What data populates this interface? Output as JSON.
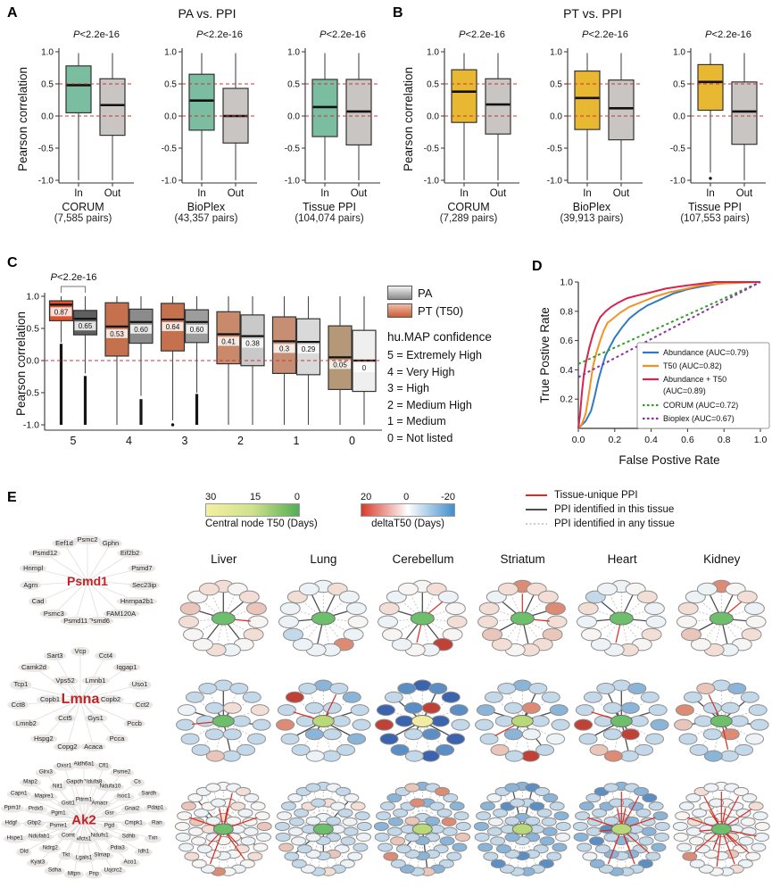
{
  "labels": {
    "A": "A",
    "B": "B",
    "C": "C",
    "D": "D",
    "E": "E"
  },
  "chart_data": [
    {
      "id": "A",
      "type": "box",
      "title": "PA vs. PPI",
      "ylabel": "Pearson correlation",
      "pvalue": "P<2.2e-16",
      "in_color": "#7abda0",
      "out_color": "#c9c5c2",
      "ref_lines": [
        0.5,
        0.0
      ],
      "ylim": [
        -1.05,
        1.05
      ],
      "yticks": [
        "1.0",
        "0.5",
        "0.0",
        "-0.5",
        "-1.0"
      ],
      "xcats": [
        "In",
        "Out"
      ],
      "subplots": [
        {
          "name": "CORUM",
          "pairs": "(7,585 pairs)",
          "in": {
            "lo": -1.0,
            "q1": 0.05,
            "med": 0.48,
            "q3": 0.78,
            "hi": 0.98
          },
          "out": {
            "lo": -1.0,
            "q1": -0.3,
            "med": 0.17,
            "q3": 0.58,
            "hi": 0.98
          }
        },
        {
          "name": "BioPlex",
          "pairs": "(43,357 pairs)",
          "in": {
            "lo": -1.0,
            "q1": -0.22,
            "med": 0.24,
            "q3": 0.65,
            "hi": 0.98
          },
          "out": {
            "lo": -1.0,
            "q1": -0.42,
            "med": 0.0,
            "q3": 0.43,
            "hi": 0.98
          }
        },
        {
          "name": "Tissue PPI",
          "pairs": "(104,074 pairs)",
          "in": {
            "lo": -1.0,
            "q1": -0.32,
            "med": 0.14,
            "q3": 0.57,
            "hi": 0.98
          },
          "out": {
            "lo": -1.0,
            "q1": -0.45,
            "med": 0.07,
            "q3": 0.57,
            "hi": 0.98
          }
        }
      ]
    },
    {
      "id": "B",
      "type": "box",
      "title": "PT vs. PPI",
      "ylabel": "Pearson correlation",
      "pvalue": "P<2.2e-16",
      "in_color": "#e8b832",
      "out_color": "#c9c5c2",
      "ref_lines": [
        0.5,
        0.0
      ],
      "ylim": [
        -1.05,
        1.05
      ],
      "yticks": [
        "1.0",
        "0.5",
        "0.0",
        "-0.5",
        "-1.0"
      ],
      "xcats": [
        "In",
        "Out"
      ],
      "subplots": [
        {
          "name": "CORUM",
          "pairs": "(7,289 pairs)",
          "in": {
            "lo": -1.0,
            "q1": -0.1,
            "med": 0.38,
            "q3": 0.72,
            "hi": 0.98
          },
          "out": {
            "lo": -1.0,
            "q1": -0.28,
            "med": 0.18,
            "q3": 0.58,
            "hi": 0.98
          }
        },
        {
          "name": "BioPlex",
          "pairs": "(39,913 pairs)",
          "in": {
            "lo": -1.0,
            "q1": -0.21,
            "med": 0.28,
            "q3": 0.7,
            "hi": 0.98
          },
          "out": {
            "lo": -1.0,
            "q1": -0.37,
            "med": 0.12,
            "q3": 0.56,
            "hi": 0.98
          }
        },
        {
          "name": "Tissue PPI",
          "pairs": "(107,553 pairs)",
          "in": {
            "lo": -0.88,
            "q1": 0.09,
            "med": 0.53,
            "q3": 0.8,
            "hi": 0.98,
            "outliers": [
              -0.97
            ]
          },
          "out": {
            "lo": -1.0,
            "q1": -0.44,
            "med": 0.07,
            "q3": 0.53,
            "hi": 0.98
          }
        }
      ]
    },
    {
      "id": "C",
      "type": "box",
      "ylabel": "Pearson correlation",
      "pvalue": "P<2.2e-16",
      "ref_lines": [
        0.0
      ],
      "yticks": [
        "1.0",
        "0.5",
        "0.0",
        "-0.5",
        "-1.0"
      ],
      "categories": [
        "5",
        "4",
        "3",
        "2",
        "1",
        "0"
      ],
      "legend": {
        "pa": "PA",
        "pt": "PT (T50)",
        "conf_title": "hu.MAP confidence",
        "items": [
          "5 = Extremely High",
          "4 = Very High",
          "3 = High",
          "2 = Medium High",
          "1 = Medium",
          "0 = Not listed"
        ]
      },
      "groups": [
        {
          "cat": "5",
          "pt": {
            "color": "#e0512e",
            "lo": 0.28,
            "q1": 0.62,
            "med": 0.87,
            "q3": 0.93,
            "hi": 1.0,
            "label": "0.87",
            "out_range": [
              -1.0,
              0.26
            ]
          },
          "pa": {
            "color": "#5f5f5f",
            "lo": -0.2,
            "q1": 0.4,
            "med": 0.65,
            "q3": 0.78,
            "hi": 1.0,
            "label": "0.65",
            "out_range": [
              -1.0,
              -0.24
            ]
          }
        },
        {
          "cat": "4",
          "pt": {
            "color": "#c5714e",
            "lo": -1.0,
            "q1": 0.07,
            "med": 0.53,
            "q3": 0.9,
            "hi": 1.0,
            "label": "0.53"
          },
          "pa": {
            "color": "#8b8b8b",
            "lo": -0.55,
            "q1": 0.27,
            "med": 0.6,
            "q3": 0.8,
            "hi": 1.0,
            "label": "0.60",
            "out_range": [
              -1.0,
              -0.6
            ]
          }
        },
        {
          "cat": "3",
          "pt": {
            "color": "#c5714e",
            "lo": -0.93,
            "q1": 0.15,
            "med": 0.64,
            "q3": 0.89,
            "hi": 1.0,
            "label": "0.64",
            "outliers": [
              -1.0
            ]
          },
          "pa": {
            "color": "#9d9d9d",
            "lo": -0.5,
            "q1": 0.28,
            "med": 0.6,
            "q3": 0.79,
            "hi": 1.0,
            "label": "0.60",
            "out_range": [
              -1.0,
              -0.52
            ]
          }
        },
        {
          "cat": "2",
          "pt": {
            "color": "#c98a6b",
            "lo": -1.0,
            "q1": -0.05,
            "med": 0.41,
            "q3": 0.76,
            "hi": 1.0,
            "label": "0.41"
          },
          "pa": {
            "color": "#c9c9c9",
            "lo": -1.0,
            "q1": -0.08,
            "med": 0.38,
            "q3": 0.71,
            "hi": 1.0,
            "label": "0.38"
          }
        },
        {
          "cat": "1",
          "pt": {
            "color": "#c68f74",
            "lo": -1.0,
            "q1": -0.2,
            "med": 0.3,
            "q3": 0.68,
            "hi": 1.0,
            "label": "0.3"
          },
          "pa": {
            "color": "#d9d9d9",
            "lo": -1.0,
            "q1": -0.22,
            "med": 0.29,
            "q3": 0.65,
            "hi": 1.0,
            "label": "0.29"
          }
        },
        {
          "cat": "0",
          "pt": {
            "color": "#b59878",
            "lo": -1.0,
            "q1": -0.45,
            "med": 0.05,
            "q3": 0.54,
            "hi": 1.0,
            "label": "0.05"
          },
          "pa": {
            "color": "#efefef",
            "lo": -1.0,
            "q1": -0.48,
            "med": 0.0,
            "q3": 0.47,
            "hi": 1.0,
            "label": "0"
          }
        }
      ]
    },
    {
      "id": "D",
      "type": "line",
      "xlabel": "False Postive Rate",
      "ylabel": "True Postive Rate",
      "xticks": [
        "0.0",
        "0.2",
        "0.4",
        "0.6",
        "0.8",
        "1.0"
      ],
      "yticks": [
        "0.2",
        "0.4",
        "0.6",
        "0.8",
        "1.0"
      ],
      "curves": [
        {
          "name": "Abundance (AUC=0.79)",
          "color": "#2f7bbf",
          "dash": "",
          "points": [
            [
              0,
              0
            ],
            [
              0.04,
              0.05
            ],
            [
              0.07,
              0.12
            ],
            [
              0.09,
              0.22
            ],
            [
              0.11,
              0.33
            ],
            [
              0.13,
              0.42
            ],
            [
              0.15,
              0.5
            ],
            [
              0.17,
              0.55
            ],
            [
              0.2,
              0.62
            ],
            [
              0.24,
              0.69
            ],
            [
              0.28,
              0.75
            ],
            [
              0.33,
              0.8
            ],
            [
              0.38,
              0.84
            ],
            [
              0.45,
              0.88
            ],
            [
              0.52,
              0.92
            ],
            [
              0.6,
              0.95
            ],
            [
              0.68,
              0.97
            ],
            [
              0.78,
              0.99
            ],
            [
              0.9,
              1.0
            ],
            [
              1,
              1
            ]
          ]
        },
        {
          "name": "T50 (AUC=0.82)",
          "color": "#f59120",
          "dash": "",
          "points": [
            [
              0,
              0
            ],
            [
              0.02,
              0.03
            ],
            [
              0.04,
              0.1
            ],
            [
              0.06,
              0.25
            ],
            [
              0.08,
              0.42
            ],
            [
              0.1,
              0.52
            ],
            [
              0.12,
              0.6
            ],
            [
              0.14,
              0.67
            ],
            [
              0.16,
              0.72
            ],
            [
              0.19,
              0.75
            ],
            [
              0.23,
              0.79
            ],
            [
              0.28,
              0.83
            ],
            [
              0.34,
              0.86
            ],
            [
              0.42,
              0.9
            ],
            [
              0.5,
              0.93
            ],
            [
              0.58,
              0.95
            ],
            [
              0.68,
              0.98
            ],
            [
              0.8,
              0.99
            ],
            [
              1,
              1
            ]
          ]
        },
        {
          "name": "Abundance + T50",
          "name2": "(AUC=0.89)",
          "color": "#d8234f",
          "dash": "",
          "points": [
            [
              0,
              0
            ],
            [
              0.01,
              0.1
            ],
            [
              0.02,
              0.25
            ],
            [
              0.03,
              0.36
            ],
            [
              0.04,
              0.44
            ],
            [
              0.06,
              0.55
            ],
            [
              0.08,
              0.64
            ],
            [
              0.1,
              0.71
            ],
            [
              0.12,
              0.76
            ],
            [
              0.15,
              0.8
            ],
            [
              0.18,
              0.83
            ],
            [
              0.22,
              0.86
            ],
            [
              0.27,
              0.89
            ],
            [
              0.33,
              0.91
            ],
            [
              0.4,
              0.93
            ],
            [
              0.48,
              0.955
            ],
            [
              0.56,
              0.97
            ],
            [
              0.65,
              0.985
            ],
            [
              0.75,
              1.0
            ],
            [
              1,
              1
            ]
          ]
        },
        {
          "name": "CORUM (AUC=0.72)",
          "color": "#33a02c",
          "dash": "3,3",
          "points": [
            [
              0,
              0.44
            ],
            [
              1,
              1
            ]
          ]
        },
        {
          "name": "Bioplex (AUC=0.67)",
          "color": "#8b2fa8",
          "dash": "3,3",
          "points": [
            [
              0,
              0.35
            ],
            [
              1,
              1
            ]
          ]
        }
      ]
    }
  ],
  "panelE": {
    "label": "E",
    "scale1": {
      "ticks": [
        "30",
        "15",
        "0"
      ],
      "label": "Central node T50 (Days)",
      "colors": [
        "#f4f0a1",
        "#cfe18c",
        "#52ae55"
      ]
    },
    "scale2": {
      "ticks": [
        "20",
        "0",
        "-20"
      ],
      "label": "deltaT50 (Days)",
      "colors": [
        "#d63b2a",
        "#ffffff",
        "#3f8fca"
      ]
    },
    "legend": [
      {
        "label": "Tissue-unique PPI",
        "color": "#d92b20",
        "style": "solid"
      },
      {
        "label": "PPI identified in this tissue",
        "color": "#4d4d4d",
        "style": "solid"
      },
      {
        "label": "PPI identified in any tissue",
        "color": "#b9b9b9",
        "style": "dotted"
      }
    ],
    "tissues": [
      "Liver",
      "Lung",
      "Cerebellum",
      "Striatum",
      "Heart",
      "Kidney"
    ],
    "palette": {
      "W": "#f7f5f3",
      "w": "#edf2f7",
      "P": "#f3ded6",
      "p": "#eac6ba",
      "S": "#dd8b74",
      "R": "#c04135",
      "b": "#c3d9ea",
      "B": "#8ab4d8",
      "D": "#5b8ec4",
      "N": "#3c63ae",
      "G": "#6dbf6b",
      "g": "#b9d877",
      "Y": "#f0eca2"
    },
    "edge_colors": {
      "s": "#4d4d4d",
      "d": "#bcbcbc",
      "r": "#d92b20"
    },
    "hubs": [
      {
        "name": "Psmd1",
        "genes": [
          "Psmc2",
          "Gphn",
          "Eif2b2",
          "Psmd7",
          "Sec23ip",
          "Hnrnpa2b1",
          "FAM120A",
          "Psmd6",
          "Psmd11",
          "Psmc3",
          "Cad",
          "Agrn",
          "Hnrnpl",
          "Psmd12",
          "Eef1d"
        ],
        "cells": [
          {
            "c": "G",
            "n": "PWPpWPWwPWWPpWP",
            "e": "sdsdrdsddsddsdd"
          },
          {
            "c": "G",
            "n": "wPwwWwSwwwbwwPw",
            "e": "dsdsddddsddsdds"
          },
          {
            "c": "G",
            "n": "WPwWPWRwWwWwPwW",
            "e": "sdrdddsdrsddsdd"
          },
          {
            "c": "G",
            "n": "SPPSPpPPWPpPPwP",
            "e": "rsdsrddsddsddsd"
          },
          {
            "c": "G",
            "n": "wWPwwPWPwwWwPbw",
            "e": "dsddsdddrddsdsd"
          },
          {
            "c": "G",
            "n": "SWPwWPWwPWpWPww",
            "e": "dsrdsddsddsddds"
          }
        ]
      },
      {
        "name": "Lmna",
        "genes": [
          "Vcp",
          "Cct4",
          "Iqgap1",
          "Uso1",
          "Cct2",
          "Pccb",
          "Pcca",
          "Acaca",
          "Copg2",
          "Hspg2",
          "Lmnb2",
          "Cct8",
          "Tcp1",
          "Camk2d",
          "Sart3",
          "Lmnb1",
          "Copb2",
          "Gys1",
          "Cct5",
          "Copb1",
          "Vps52"
        ],
        "cells": [
          {
            "c": "G",
            "n": "bbbPbbbbpbbbwbbPbbbbb",
            "e": "sdddsddsdddrsddsdddds"
          },
          {
            "c": "g",
            "n": "BbBbbBbbwbbSbRbbbbBbb",
            "e": "drdsdsddddsdrddsddsdd"
          },
          {
            "c": "Y",
            "n": "NDNDbNDNbDNRNbDRNDbND",
            "e": "dsdddsddddsddsddddsdd"
          },
          {
            "c": "g",
            "n": "BbbBbwbRbpbbBbbSbwBbb",
            "e": "dsdsddsdddrdsddsddsdd"
          },
          {
            "c": "G",
            "n": "bBbbBbbbSpbRbbbBbRbbb",
            "e": "sddsdddsddsdrdsddsdds"
          },
          {
            "c": "G",
            "n": "bBbbbwbbBbbpSbpbbSbbb",
            "e": "ddsdsddrdddsdsrddsdds"
          }
        ]
      },
      {
        "name": "Ak2",
        "genes": [
          "Aldh6a1",
          "Cfl1",
          "Psme2",
          "Cs",
          "Sardh",
          "Pdap1",
          "Ran",
          "Txn",
          "Idh1",
          "Aco1",
          "Uqcrc2",
          "Pnp",
          "Mtpn",
          "Sdha",
          "Kyat3",
          "Dld",
          "Hspe1",
          "Hdgf",
          "Ppm1f",
          "Capn1",
          "Map2",
          "Glrx3",
          "Oxsr1",
          "Ndufa8",
          "Ndufa10",
          "Isoc1",
          "Gnai2",
          "Cmpk1",
          "Sdhb",
          "Pdia3",
          "Slmap",
          "Lgals1",
          "Tkt",
          "Ndrg2",
          "Ndufab1",
          "Gbp2",
          "Prdx5",
          "Mapre1",
          "Nit1",
          "Gapdh",
          "Pitrm1",
          "Amacr",
          "Gsr",
          "Pgd",
          "Ndufs1",
          "Mcts1",
          "Comt",
          "Psme1",
          "Pgm1",
          "Gstt1"
        ],
        "cells": [
          {
            "c": "G",
            "n": "WwPwWWpwWPWwWSwWPwwWWpWwWWPwWwwPWwWwWWpwWwPWwWWwPw",
            "e": "drdddrddsdrdddrdddddrdsddrdddddrdddrdddsdrddddrddd"
          },
          {
            "c": "G",
            "n": "bwbwPbbwbwwbPbwbbpbbwbwbbPwbwbbwpbwbwwbbPbwbwbbwbw",
            "e": "dddsddddddddddddsddddddddddddddddsdddddddddddddsdd"
          },
          {
            "c": "g",
            "n": "BbSbBbbpBbbBpbBbSbbBbbBbpBbbSbBbbBbbpbBbbSbBbbBbbp",
            "e": "ddddddddddddsddddddddddddddddddddddsdddddddddddddd"
          },
          {
            "c": "g",
            "n": "BDbBbBbwBbDbBbbDbBbBbBwbBbDbbBBbbDbBbbwbDbBbbBbBbb",
            "e": "dsddddddddddddddddddddddsdddddddddddddddddddddsddd"
          },
          {
            "c": "g",
            "n": "BbBDbBbbBbDbbBbBwbBbbBbDbbBbbBbbBbBbDbbbBbbBbbBbDb",
            "e": "rdrddrdddrdrddrdddddrddddrddddddrddddrdddrddddrddd"
          },
          {
            "c": "G",
            "n": "WwWwPwWwwWwPwWwwSwWwWwwPwWwwWwwWpwWwWwPwWwWwwPwWww",
            "e": "rdrdrddrdrdrdrddrdddrddrdrdddddrddrddrddrdddrddddd"
          }
        ]
      }
    ]
  }
}
